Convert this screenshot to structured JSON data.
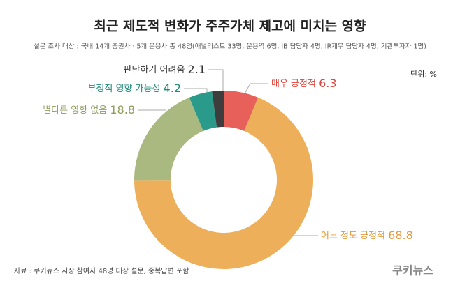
{
  "chart_data": {
    "type": "donut",
    "title": "최근 제도적 변화가 주주가체 제고에 미치는 영향",
    "subtitle": "설문 조사 대상 : 국내 14개 증권사 · 5개 운용사 총 48명(애널리스트 33명,  운용역 6명, IB 담당자  4명, IR재무 담당자 4명, 기관투자자 1명)",
    "unit": "단위: %",
    "source": "자료 : 쿠키뉴스 시장 참여자 48명 대상 설문, 중복답변 포함",
    "logo": "쿠키뉴스",
    "categories": [
      "매우 긍정적",
      "어느 정도 긍정적",
      "별다른 영향 없음",
      "부정적 영향 가능성",
      "판단하기 어려움"
    ],
    "values": [
      6.3,
      68.8,
      18.8,
      4.2,
      2.1
    ],
    "colors": [
      "#e8605a",
      "#eeaf5a",
      "#a9b97f",
      "#2a9a8a",
      "#3d3d3d"
    ],
    "label_colors": [
      "#e0453c",
      "#e39a3a",
      "#8d9d5c",
      "#1f8a78",
      "#333333"
    ]
  }
}
